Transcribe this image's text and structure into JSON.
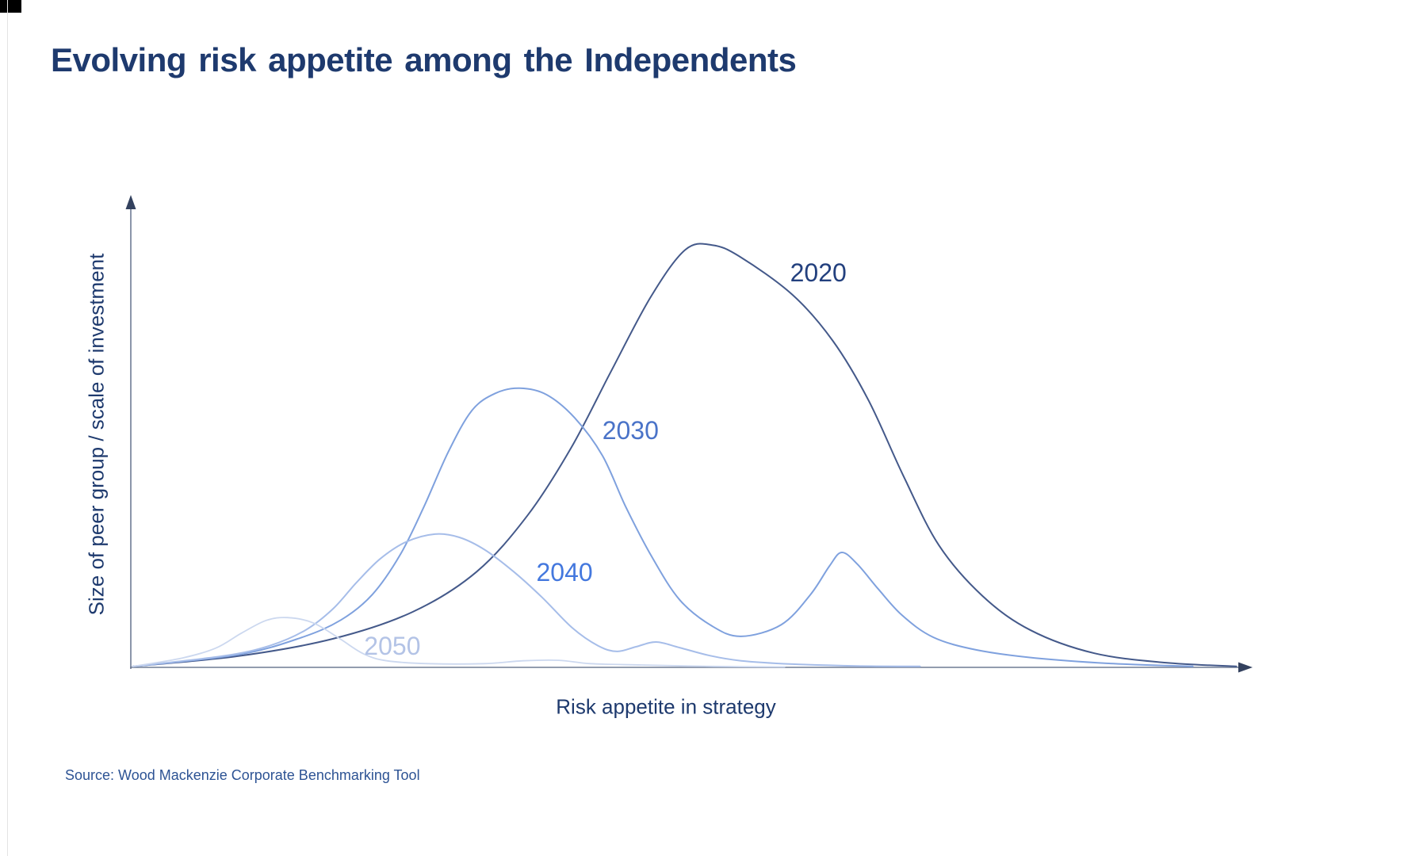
{
  "title": "Evolving risk appetite among the Independents",
  "source": "Source: Wood Mackenzie Corporate Benchmarking Tool",
  "theme": {
    "background": "#ffffff",
    "title_color": "#1e3a6e",
    "source_color": "#2d5394",
    "axis_color": "#6e7b94",
    "arrow_color": "#33415e"
  },
  "chart_data": {
    "type": "line",
    "title": "Evolving risk appetite among the Independents",
    "xlabel": "Risk appetite in strategy",
    "ylabel": "Size of peer group / scale of investment",
    "grid": false,
    "axis_ticks": false,
    "legend_position": "inline curve labels",
    "x_range": [
      0,
      100
    ],
    "y_range": [
      0,
      100
    ],
    "series": [
      {
        "name": "2020",
        "color": "#44598a",
        "label_color": "#23407e",
        "stroke_width": 2,
        "label_x": 61.5,
        "label_y": 84.1,
        "points": [
          [
            0.2,
            0.2
          ],
          [
            9.6,
            2.4
          ],
          [
            18.1,
            6.1
          ],
          [
            25.2,
            11.8
          ],
          [
            30.9,
            20.3
          ],
          [
            35.5,
            32.4
          ],
          [
            39.4,
            46.8
          ],
          [
            42.9,
            62.8
          ],
          [
            46.5,
            78.9
          ],
          [
            49.6,
            89.0
          ],
          [
            52.0,
            90.0
          ],
          [
            54.5,
            87.5
          ],
          [
            59.2,
            79.4
          ],
          [
            62.8,
            69.6
          ],
          [
            66.0,
            56.9
          ],
          [
            69.1,
            40.9
          ],
          [
            72.3,
            26.0
          ],
          [
            76.2,
            15.2
          ],
          [
            80.5,
            7.9
          ],
          [
            86.2,
            3.0
          ],
          [
            92.6,
            1.0
          ],
          [
            98.9,
            0.2
          ]
        ]
      },
      {
        "name": "2030",
        "color": "#7fa1de",
        "label_color": "#4a73c8",
        "stroke_width": 2,
        "label_x": 44.7,
        "label_y": 50.5,
        "points": [
          [
            0.2,
            0.2
          ],
          [
            9.6,
            2.7
          ],
          [
            15.2,
            6.3
          ],
          [
            18.8,
            10.1
          ],
          [
            21.6,
            15.5
          ],
          [
            24.1,
            24.0
          ],
          [
            26.2,
            34.1
          ],
          [
            28.4,
            45.9
          ],
          [
            30.5,
            54.7
          ],
          [
            32.6,
            58.4
          ],
          [
            34.8,
            59.5
          ],
          [
            37.2,
            58.1
          ],
          [
            39.7,
            53.2
          ],
          [
            42.2,
            45.1
          ],
          [
            44.3,
            34.1
          ],
          [
            46.6,
            23.6
          ],
          [
            49.1,
            14.4
          ],
          [
            52.0,
            8.8
          ],
          [
            54.6,
            6.6
          ],
          [
            58.2,
            9.1
          ],
          [
            60.8,
            15.5
          ],
          [
            62.5,
            21.6
          ],
          [
            63.6,
            24.5
          ],
          [
            65.0,
            22.0
          ],
          [
            66.9,
            16.6
          ],
          [
            69.0,
            11.1
          ],
          [
            71.8,
            6.4
          ],
          [
            75.7,
            3.7
          ],
          [
            80.9,
            2.0
          ],
          [
            87.9,
            0.8
          ],
          [
            95.0,
            0.2
          ]
        ]
      },
      {
        "name": "2040",
        "color": "#a6bde9",
        "label_color": "#4478de",
        "stroke_width": 2,
        "label_x": 38.8,
        "label_y": 20.3,
        "points": [
          [
            0.2,
            0.2
          ],
          [
            8.2,
            2.4
          ],
          [
            12.4,
            4.6
          ],
          [
            15.6,
            7.9
          ],
          [
            18.1,
            12.5
          ],
          [
            20.2,
            18.1
          ],
          [
            22.3,
            23.1
          ],
          [
            24.6,
            26.7
          ],
          [
            27.2,
            28.4
          ],
          [
            29.4,
            27.7
          ],
          [
            31.7,
            25.0
          ],
          [
            34.3,
            20.3
          ],
          [
            36.8,
            14.9
          ],
          [
            39.5,
            8.4
          ],
          [
            41.8,
            4.6
          ],
          [
            43.5,
            3.4
          ],
          [
            45.2,
            4.4
          ],
          [
            47.0,
            5.4
          ],
          [
            49.1,
            4.2
          ],
          [
            51.8,
            2.5
          ],
          [
            54.6,
            1.4
          ],
          [
            59.2,
            0.7
          ],
          [
            64.9,
            0.3
          ],
          [
            70.6,
            0.2
          ]
        ]
      },
      {
        "name": "2050",
        "color": "#ccd8ef",
        "label_color": "#b3c3e6",
        "stroke_width": 1.8,
        "label_x": 23.4,
        "label_y": 4.6,
        "points": [
          [
            0.2,
            0.2
          ],
          [
            4.6,
            2.0
          ],
          [
            7.6,
            4.1
          ],
          [
            9.9,
            7.3
          ],
          [
            12.1,
            10.0
          ],
          [
            14.0,
            10.6
          ],
          [
            16.3,
            9.5
          ],
          [
            18.7,
            6.1
          ],
          [
            20.8,
            2.9
          ],
          [
            22.9,
            1.4
          ],
          [
            26.6,
            0.8
          ],
          [
            31.6,
            0.8
          ],
          [
            35.1,
            1.4
          ],
          [
            38.3,
            1.5
          ],
          [
            41.1,
            0.8
          ],
          [
            45.7,
            0.5
          ],
          [
            52.1,
            0.2
          ],
          [
            58.5,
            0.1
          ]
        ]
      }
    ]
  }
}
